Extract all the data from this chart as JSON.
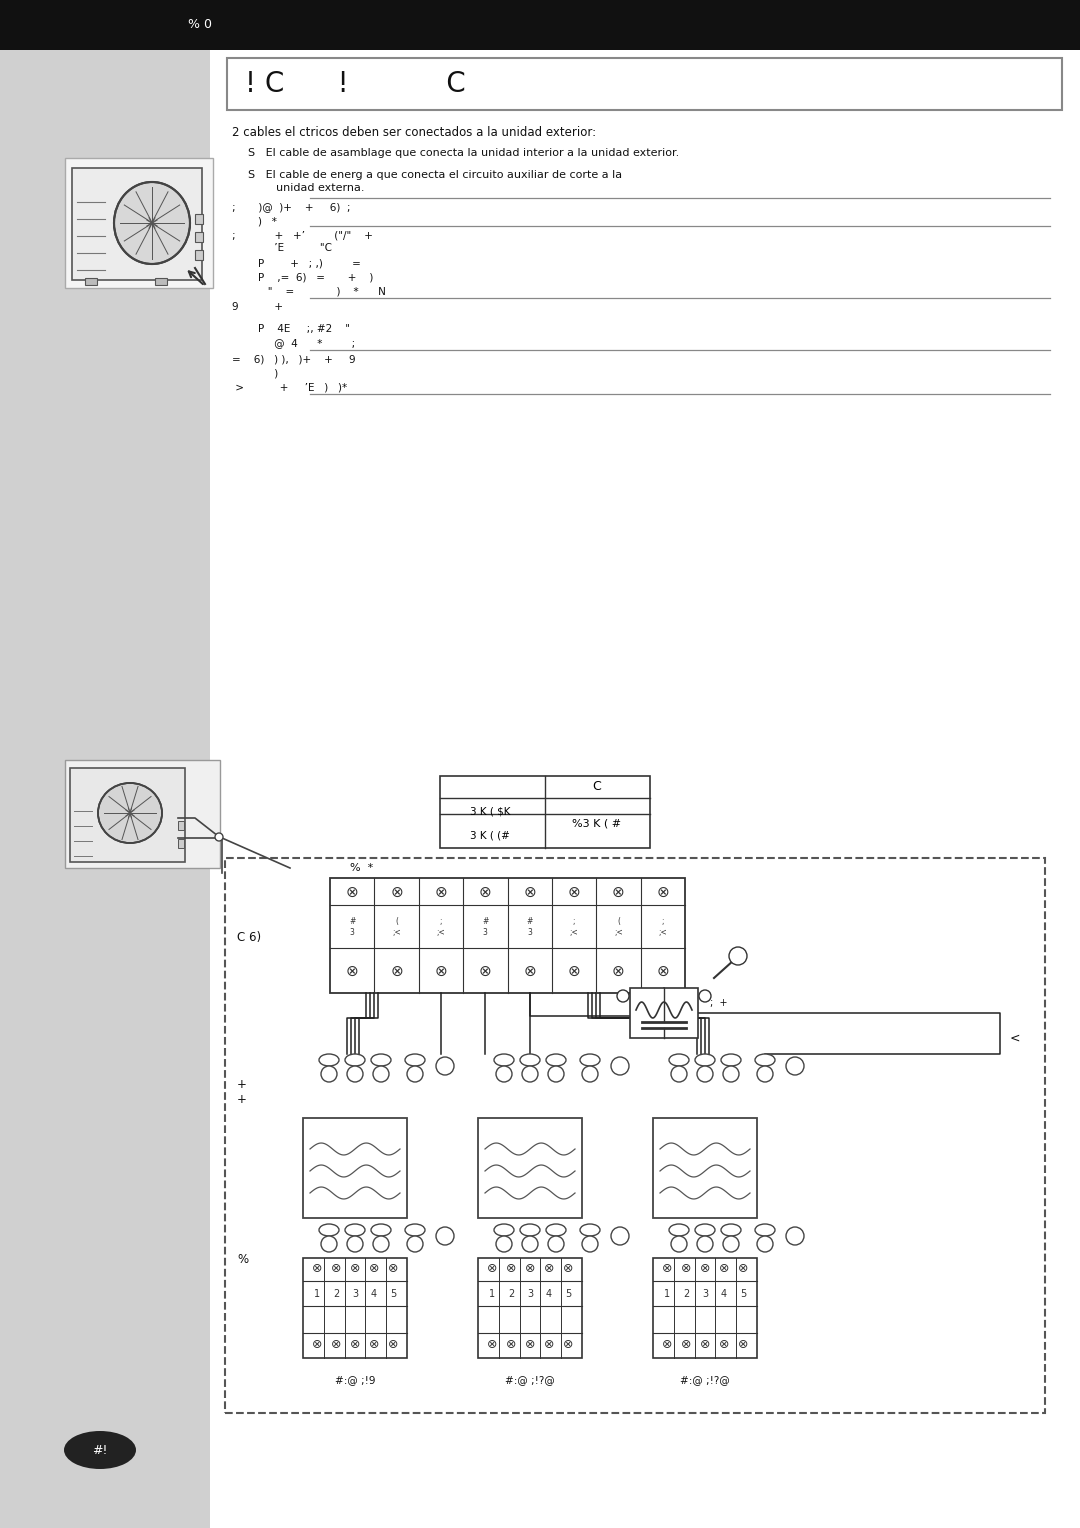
{
  "page_bg": "#e2e2e2",
  "sidebar_bg": "#d0d0d0",
  "content_bg": "#ffffff",
  "black_bar_color": "#111111",
  "header_text": "% 0",
  "title_text": "! C      !           C",
  "body1": "2 cables el ctricos deben ser conectados a la unidad exterior:",
  "b1": "S   El cable de asamblage que conecta la unidad interior a la unidad exterior.",
  "b2a": "S   El cable de energ a que conecta el circuito auxiliar de corte a la",
  "b2b": "        unidad externa.",
  "r1a": ";       )@  )+    +     6)  ;",
  "r1b": "        )   *",
  "r2a": ";            +   +’         (\"/\"    +",
  "r2b": "             ’E           \"C",
  "r2c": "        P        +   ; ,)         =",
  "r2d": "        P    ,=  6)   =       +    )",
  "r2e": "           \"    =             )    *      N",
  "r3a": "9           +",
  "r3b": "        P    4E     ;, #2    \"",
  "r3c": "             @  4      *         ;",
  "r4a": "=    6)   ) ),   )+    +     9",
  "r4b": "             )",
  "r4c": " >           +     ’E   )   )*",
  "tbl_hdr": "C",
  "tbl_r1": "3 K ( $K",
  "tbl_r2": "3 K ( (#",
  "tbl_val": "%3 K ( #",
  "lbl_pct_star": "%  *",
  "lbl_c6": "C 6)",
  "lbl_plus": "+\n+",
  "lbl_pct": "%",
  "lbl_right": "<",
  "lbl_note": ";  +",
  "lbl_u1": "#:@ ;!9",
  "lbl_u2": "#:@ ;!?@",
  "lbl_u3": "#:@ ;!?@",
  "term_labels": [
    "#\n3",
    "(\n;<",
    ";\n;<",
    "#\n3",
    "#\n3",
    ";\n;<",
    "(\n;<",
    ";\n;<"
  ],
  "footer": "#!"
}
